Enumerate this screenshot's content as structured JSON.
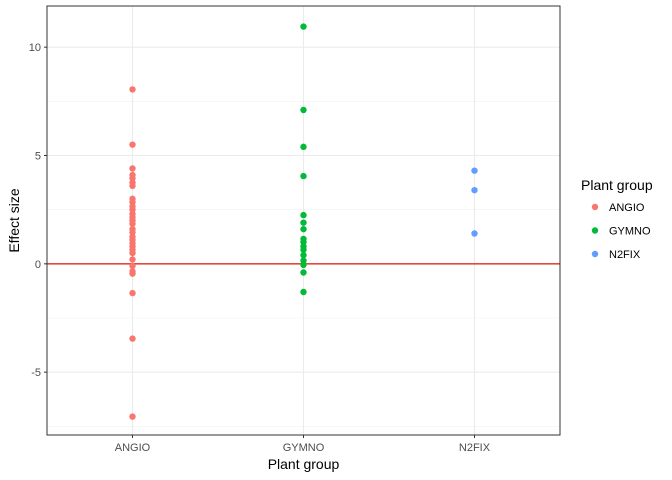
{
  "chart_data": {
    "type": "scatter",
    "xlabel": "Plant group",
    "ylabel": "Effect size",
    "categories": [
      "ANGIO",
      "GYMNO",
      "N2FIX"
    ],
    "ylim": [
      -7.9,
      11.9
    ],
    "y_ticks": [
      -5,
      0,
      5,
      10
    ],
    "y_tick_labels": [
      "-5",
      "0",
      "5",
      "10"
    ],
    "grid": true,
    "reference_line": {
      "y": 0,
      "color": "#E5493C"
    },
    "legend": {
      "title": "Plant group",
      "position": "right",
      "entries": [
        {
          "label": "ANGIO",
          "color": "#F8766D"
        },
        {
          "label": "GYMNO",
          "color": "#00BA38"
        },
        {
          "label": "N2FIX",
          "color": "#619CFF"
        }
      ]
    },
    "series": [
      {
        "name": "ANGIO",
        "category": "ANGIO",
        "color": "#F8766D",
        "values": [
          8.05,
          5.5,
          4.4,
          4.1,
          3.95,
          3.75,
          3.6,
          3.0,
          2.85,
          2.65,
          2.5,
          2.3,
          2.15,
          2.0,
          1.85,
          1.6,
          1.45,
          1.25,
          1.1,
          0.95,
          0.8,
          0.65,
          0.5,
          0.2,
          -0.1,
          -0.35,
          -0.45,
          -1.35,
          -3.45,
          -7.05
        ]
      },
      {
        "name": "GYMNO",
        "category": "GYMNO",
        "color": "#00BA38",
        "values": [
          10.95,
          7.1,
          5.4,
          4.05,
          2.25,
          1.9,
          1.6,
          1.15,
          1.0,
          0.8,
          0.65,
          0.4,
          0.15,
          -0.05,
          -0.4,
          -1.3
        ]
      },
      {
        "name": "N2FIX",
        "category": "N2FIX",
        "color": "#619CFF",
        "values": [
          4.3,
          3.4,
          1.4
        ]
      }
    ]
  }
}
